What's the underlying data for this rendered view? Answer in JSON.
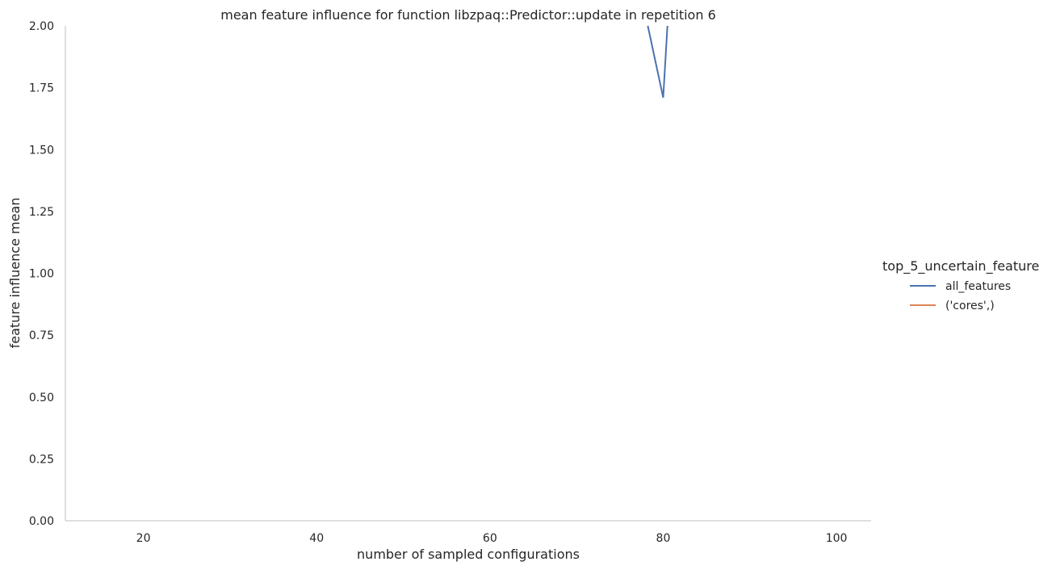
{
  "chart_data": {
    "type": "line",
    "title": "mean feature influence for function libzpaq::Predictor::update in repetition 6",
    "xlabel": "number of sampled configurations",
    "ylabel": "feature influence mean",
    "xlim": [
      11,
      104
    ],
    "ylim": [
      0,
      2
    ],
    "xticks": [
      20,
      40,
      60,
      80,
      100
    ],
    "xtick_labels": [
      "20",
      "40",
      "60",
      "80",
      "100"
    ],
    "yticks": [
      0,
      0.25,
      0.5,
      0.75,
      1.0,
      1.25,
      1.5,
      1.75,
      2.0
    ],
    "ytick_labels": [
      "0.00",
      "0.25",
      "0.50",
      "0.75",
      "1.00",
      "1.25",
      "1.50",
      "1.75",
      "2.00"
    ],
    "grid": false,
    "legend": {
      "title": "top_5_uncertain_feature",
      "placement": "right"
    },
    "series": [
      {
        "name": "all_features",
        "color": "#4c72b0",
        "x": [
          77,
          80,
          81
        ],
        "y": [
          2.2,
          1.71,
          2.3
        ]
      },
      {
        "name": "('cores',)",
        "color": "#dd8452",
        "x": [],
        "y": []
      }
    ]
  }
}
